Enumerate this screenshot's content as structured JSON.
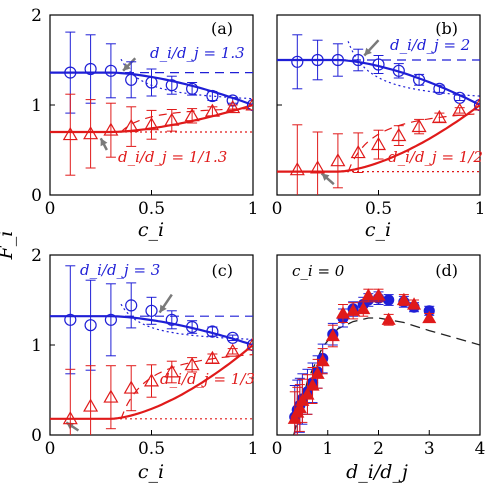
{
  "figure": {
    "ylabel": "F̂_i",
    "colors": {
      "blue": "#1f1fd6",
      "red": "#e01a1a",
      "arrow": "#7a7a7a",
      "dashed_black": "#222222"
    }
  },
  "chart_data": [
    {
      "id": "a",
      "panel_label": "(a)",
      "type": "scatter",
      "xlabel": "c_i",
      "ylabel": "F̂_i",
      "xlim": [
        0,
        1
      ],
      "ylim": [
        0,
        2
      ],
      "x_ticks": [
        "0",
        "0.5",
        "1"
      ],
      "y_ticks": [
        "0",
        "1",
        "2"
      ],
      "annotations": [
        {
          "text": "d_i/d_j = 1.3",
          "color": "blue"
        },
        {
          "text": "d_i/d_j = 1/1.3",
          "color": "red"
        }
      ],
      "series": [
        {
          "color": "blue",
          "marker": "circle-open",
          "x": [
            0.1,
            0.2,
            0.3,
            0.4,
            0.5,
            0.6,
            0.7,
            0.8,
            0.9,
            1.0
          ],
          "y": [
            1.36,
            1.4,
            1.38,
            1.28,
            1.25,
            1.22,
            1.18,
            1.1,
            1.05,
            1.0
          ],
          "err": [
            0.45,
            0.38,
            0.3,
            0.2,
            0.15,
            0.1,
            0.07,
            0.05,
            0.03,
            0.0
          ]
        },
        {
          "color": "red",
          "marker": "triangle-open",
          "x": [
            0.1,
            0.2,
            0.3,
            0.4,
            0.5,
            0.6,
            0.7,
            0.8,
            0.9,
            1.0
          ],
          "y": [
            0.67,
            0.68,
            0.72,
            0.76,
            0.78,
            0.83,
            0.88,
            0.93,
            0.97,
            1.0
          ],
          "err": [
            0.45,
            0.38,
            0.3,
            0.22,
            0.16,
            0.12,
            0.08,
            0.05,
            0.03,
            0.0
          ]
        }
      ],
      "fits": {
        "blue_high": 1.36,
        "red_low": 0.7
      }
    },
    {
      "id": "b",
      "panel_label": "(b)",
      "type": "scatter",
      "xlabel": "c_i",
      "xlim": [
        0,
        1
      ],
      "ylim": [
        0,
        2
      ],
      "x_ticks": [
        "0",
        "0.5",
        "1"
      ],
      "y_ticks": [
        "0",
        "1",
        "2"
      ],
      "annotations": [
        {
          "text": "d_i/d_j = 2",
          "color": "blue"
        },
        {
          "text": "d_i/d_j = 1/2",
          "color": "red"
        }
      ],
      "series": [
        {
          "color": "blue",
          "marker": "circle-open",
          "x": [
            0.1,
            0.2,
            0.3,
            0.4,
            0.5,
            0.6,
            0.7,
            0.8,
            0.9,
            1.0
          ],
          "y": [
            1.48,
            1.5,
            1.5,
            1.5,
            1.45,
            1.38,
            1.28,
            1.18,
            1.08,
            1.0
          ],
          "err": [
            0.3,
            0.22,
            0.18,
            0.12,
            0.1,
            0.08,
            0.06,
            0.04,
            0.03,
            0.0
          ]
        },
        {
          "color": "red",
          "marker": "triangle-open",
          "x": [
            0.1,
            0.2,
            0.3,
            0.4,
            0.5,
            0.6,
            0.7,
            0.8,
            0.9,
            1.0
          ],
          "y": [
            0.28,
            0.3,
            0.38,
            0.47,
            0.56,
            0.66,
            0.76,
            0.86,
            0.94,
            1.0
          ],
          "err": [
            0.5,
            0.4,
            0.3,
            0.22,
            0.16,
            0.11,
            0.08,
            0.05,
            0.03,
            0.0
          ]
        }
      ],
      "fits": {
        "blue_high": 1.5,
        "red_low": 0.26
      }
    },
    {
      "id": "c",
      "panel_label": "(c)",
      "type": "scatter",
      "xlabel": "c_i",
      "xlim": [
        0,
        1
      ],
      "ylim": [
        0,
        2
      ],
      "x_ticks": [
        "0",
        "0.5",
        "1"
      ],
      "y_ticks": [
        "0",
        "1",
        "2"
      ],
      "annotations": [
        {
          "text": "d_i/d_j = 3",
          "color": "blue"
        },
        {
          "text": "d_i/d_j = 1/3",
          "color": "red"
        }
      ],
      "series": [
        {
          "color": "blue",
          "marker": "circle-open",
          "x": [
            0.1,
            0.2,
            0.3,
            0.4,
            0.5,
            0.6,
            0.7,
            0.8,
            0.9,
            1.0
          ],
          "y": [
            1.28,
            1.22,
            1.28,
            1.44,
            1.38,
            1.28,
            1.2,
            1.15,
            1.08,
            1.0
          ],
          "err": [
            0.6,
            0.5,
            0.4,
            0.25,
            0.15,
            0.1,
            0.07,
            0.05,
            0.03,
            0.0
          ]
        },
        {
          "color": "red",
          "marker": "triangle-open",
          "x": [
            0.1,
            0.2,
            0.3,
            0.4,
            0.5,
            0.6,
            0.7,
            0.8,
            0.9,
            1.0
          ],
          "y": [
            0.18,
            0.32,
            0.42,
            0.52,
            0.6,
            0.7,
            0.78,
            0.85,
            0.93,
            1.0
          ],
          "err": [
            0.55,
            0.45,
            0.35,
            0.25,
            0.18,
            0.12,
            0.08,
            0.05,
            0.03,
            0.0
          ]
        }
      ],
      "fits": {
        "blue_high": 1.32,
        "red_low": 0.18
      }
    },
    {
      "id": "d",
      "panel_label": "(d)",
      "type": "scatter",
      "title_annotation": "c_i = 0",
      "xlabel": "d_i/d_j",
      "xlim": [
        0,
        4
      ],
      "ylim": [
        0,
        2
      ],
      "x_ticks": [
        "0",
        "1",
        "2",
        "3",
        "4"
      ],
      "series": [
        {
          "color": "blue",
          "marker": "circle-filled",
          "x": [
            0.35,
            0.4,
            0.45,
            0.5,
            0.6,
            0.7,
            0.8,
            0.9,
            1.1,
            1.3,
            1.5,
            1.7,
            1.8,
            2.0,
            2.2,
            2.5,
            2.7,
            3.0
          ],
          "y": [
            0.2,
            0.28,
            0.33,
            0.4,
            0.48,
            0.58,
            0.7,
            0.85,
            1.12,
            1.3,
            1.4,
            1.45,
            1.5,
            1.52,
            1.5,
            1.48,
            1.42,
            1.38
          ],
          "err": [
            0.35,
            0.33,
            0.3,
            0.28,
            0.25,
            0.22,
            0.18,
            0.16,
            0.12,
            0.1,
            0.08,
            0.08,
            0.07,
            0.07,
            0.06,
            0.06,
            0.05,
            0.05
          ]
        },
        {
          "color": "red",
          "marker": "triangle-filled",
          "x": [
            0.35,
            0.4,
            0.45,
            0.5,
            0.6,
            0.7,
            0.8,
            0.9,
            1.1,
            1.3,
            1.5,
            1.7,
            1.8,
            2.0,
            2.2,
            2.5,
            2.7,
            3.0
          ],
          "y": [
            0.18,
            0.25,
            0.3,
            0.38,
            0.45,
            0.55,
            0.68,
            0.82,
            1.1,
            1.35,
            1.38,
            1.4,
            1.55,
            1.55,
            1.28,
            1.5,
            1.45,
            1.3
          ],
          "err": [
            0.3,
            0.28,
            0.26,
            0.24,
            0.22,
            0.2,
            0.16,
            0.14,
            0.12,
            0.1,
            0.09,
            0.08,
            0.07,
            0.07,
            0.06,
            0.06,
            0.05,
            0.05
          ]
        }
      ],
      "dashed_theory": {
        "x": [
          0.33,
          0.6,
          0.9,
          1.2,
          1.5,
          1.8,
          2.0,
          2.5,
          3.0,
          3.5,
          4.0
        ],
        "y": [
          0.0,
          0.6,
          0.98,
          1.18,
          1.26,
          1.3,
          1.3,
          1.25,
          1.16,
          1.08,
          1.0
        ]
      }
    }
  ]
}
